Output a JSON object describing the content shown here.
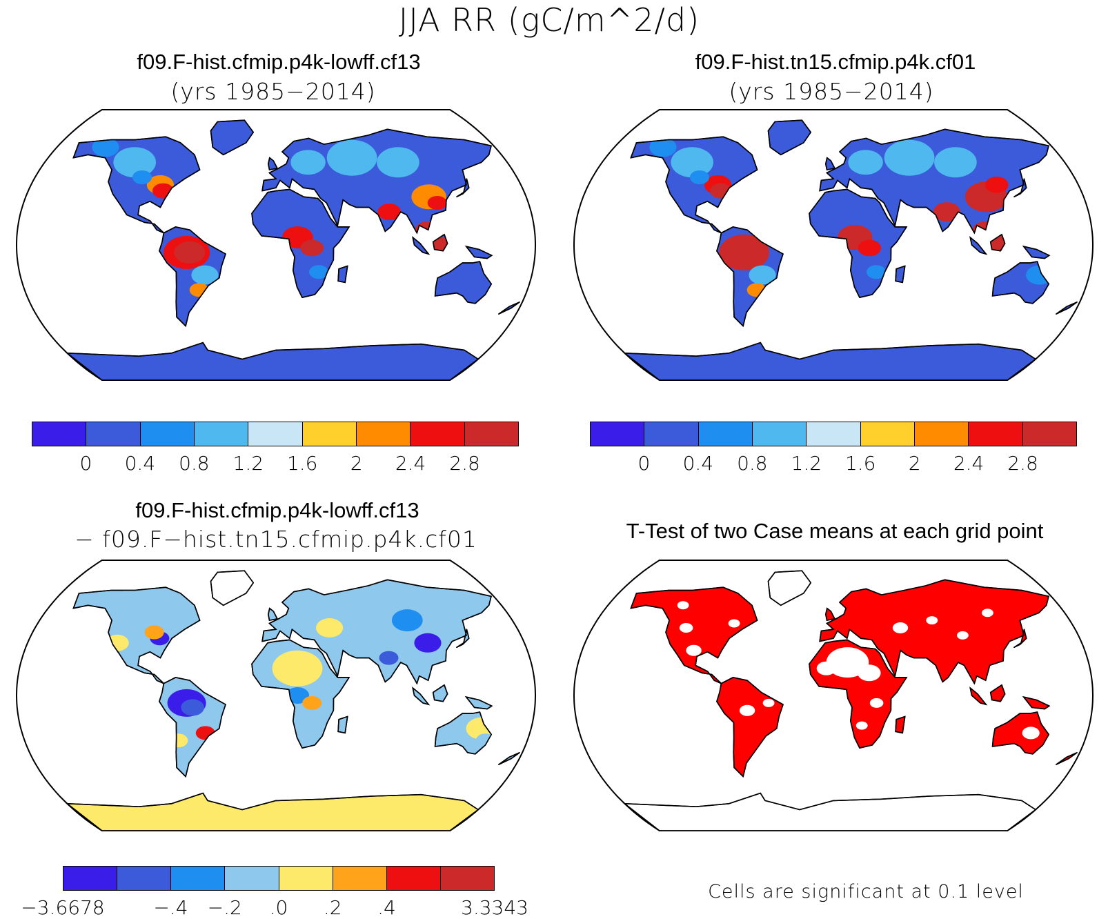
{
  "figure": {
    "title": "JJA RR (gC/m^2/d)"
  },
  "panels": [
    {
      "id": "case1",
      "title": "f09.F-hist.cfmip.p4k-lowff.cf13",
      "subtitle": "(yrs 1985−2014)",
      "colorbar": {
        "colors": [
          "#3a1de8",
          "#3b5bdb",
          "#1e8ff0",
          "#4fb8ee",
          "#c8e6f5",
          "#ffd02b",
          "#ff8c00",
          "#ee1010",
          "#cc2a2a"
        ],
        "tick_labels": [
          "0",
          "0.4",
          "0.8",
          "1.2",
          "1.6",
          "2",
          "2.4",
          "2.8"
        ]
      }
    },
    {
      "id": "case2",
      "title": "f09.F-hist.tn15.cfmip.p4k.cf01",
      "subtitle": "(yrs 1985−2014)",
      "colorbar": {
        "colors": [
          "#3a1de8",
          "#3b5bdb",
          "#1e8ff0",
          "#4fb8ee",
          "#c8e6f5",
          "#ffd02b",
          "#ff8c00",
          "#ee1010",
          "#cc2a2a"
        ],
        "tick_labels": [
          "0",
          "0.4",
          "0.8",
          "1.2",
          "1.6",
          "2",
          "2.4",
          "2.8"
        ]
      }
    },
    {
      "id": "difference",
      "title": "f09.F-hist.cfmip.p4k-lowff.cf13",
      "subtitle": "− f09.F−hist.tn15.cfmip.p4k.cf01",
      "colorbar": {
        "colors": [
          "#3a1de8",
          "#3b5bdb",
          "#1e8ff0",
          "#8ec8ec",
          "#fde96a",
          "#ffa31a",
          "#ee1010",
          "#cc2a2a"
        ],
        "tick_labels": [
          "−3.6678",
          "−.4",
          "−.2",
          ".0",
          ".2",
          ".4",
          "3.3343"
        ]
      }
    },
    {
      "id": "ttest",
      "title": "T-Test of two Case means at each grid point",
      "footnote": "Cells are significant at 0.1 level",
      "sig_color": "#ff0000"
    }
  ],
  "map_fills": {
    "ocean": "#ffffff",
    "coast": "#000000"
  }
}
